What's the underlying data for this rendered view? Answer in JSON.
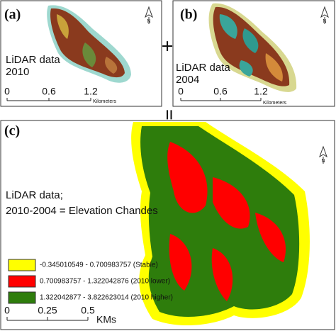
{
  "panels": [
    {
      "label": "(a)",
      "caption": [
        "LiDAR data",
        "2010"
      ],
      "scale": [
        "0",
        "0.6",
        "1.2"
      ],
      "unit": "Kilometers",
      "north": "N"
    },
    {
      "label": "(b)",
      "caption": [
        "LiDAR data",
        "2004"
      ],
      "scale": [
        "0",
        "0.6",
        "1.2"
      ],
      "unit": "Kilometers",
      "north": "N"
    },
    {
      "label": "(c)",
      "caption": [
        "LiDAR data;",
        "2010-2004 = Elevation Chandes"
      ],
      "scale": [
        "0",
        "0.25",
        "0.5"
      ],
      "unit": "KMs",
      "north": "N",
      "legend": [
        "-0.345010549 - 0.700983757 (Stable)",
        "0.700983757 - 1.322042876 (2010 lower)",
        "1.322042877 - 3.822623014 (2010 higher)"
      ]
    }
  ],
  "operators": {
    "plus": "+",
    "equals": "="
  }
}
